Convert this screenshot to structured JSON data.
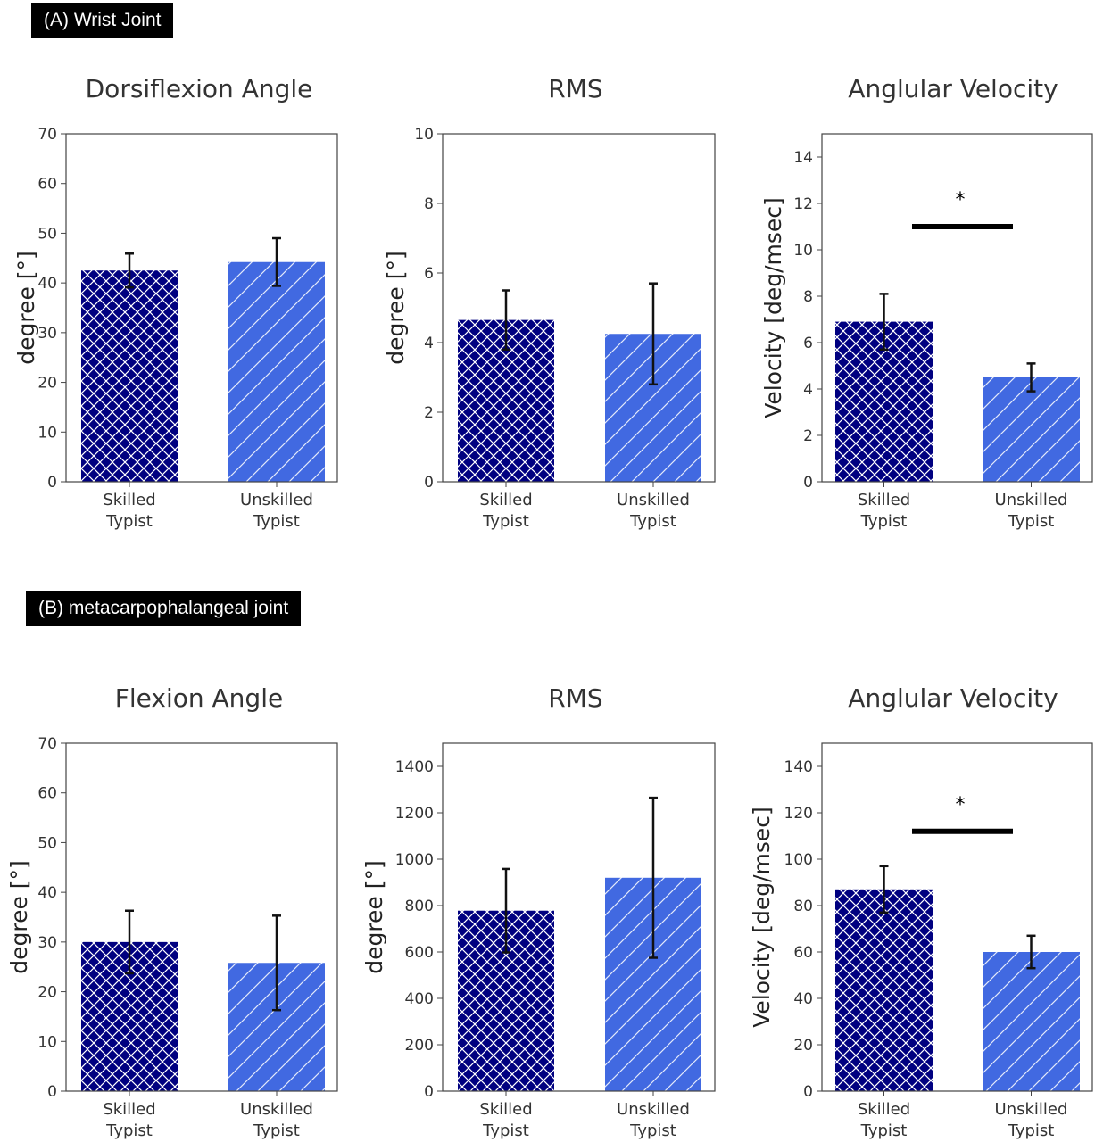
{
  "sections": [
    {
      "label": "(A) Wrist Joint"
    },
    {
      "label": "(B) metacarpophalangeal joint"
    }
  ],
  "colors": {
    "skilled": "#000080",
    "unskilled": "#4169E1",
    "hatch": "#ffffff",
    "error": "#111111",
    "frame": "#444444"
  },
  "legend_patterns": {
    "skilled": "crosshatch",
    "unskilled": "diagonal"
  },
  "chart_data": [
    {
      "type": "bar",
      "title": "Dorsiflexion Angle",
      "ylabel": "degree [°]",
      "ylim": [
        0,
        70
      ],
      "yticks": [
        0,
        10,
        20,
        30,
        40,
        50,
        60,
        70
      ],
      "categories": [
        [
          "Skilled",
          "Typist"
        ],
        [
          "Unskilled",
          "Typist"
        ]
      ],
      "values": [
        42.5,
        44.2
      ],
      "errors": [
        3.4,
        4.8
      ],
      "significance": null
    },
    {
      "type": "bar",
      "title": "RMS",
      "ylabel": "degree [°]",
      "ylim": [
        0,
        10
      ],
      "yticks": [
        0,
        2,
        4,
        6,
        8,
        10
      ],
      "categories": [
        [
          "Skilled",
          "Typist"
        ],
        [
          "Unskilled",
          "Typist"
        ]
      ],
      "values": [
        4.65,
        4.25
      ],
      "errors": [
        0.85,
        1.45
      ],
      "significance": null
    },
    {
      "type": "bar",
      "title": "Anglular Velocity",
      "ylabel": "Velocity [deg/msec]",
      "ylim": [
        0,
        15
      ],
      "yticks": [
        0,
        2,
        4,
        6,
        8,
        10,
        12,
        14
      ],
      "categories": [
        [
          "Skilled",
          "Typist"
        ],
        [
          "Unskilled",
          "Typist"
        ]
      ],
      "values": [
        6.9,
        4.5
      ],
      "errors": [
        1.2,
        0.6
      ],
      "significance": {
        "symbol": "*",
        "line_y": 11
      }
    },
    {
      "type": "bar",
      "title": "Flexion Angle",
      "ylabel": "degree [°]",
      "ylim": [
        0,
        70
      ],
      "yticks": [
        0,
        10,
        20,
        30,
        40,
        50,
        60,
        70
      ],
      "categories": [
        [
          "Skilled",
          "Typist"
        ],
        [
          "Unskilled",
          "Typist"
        ]
      ],
      "values": [
        30.0,
        25.8
      ],
      "errors": [
        6.3,
        9.5
      ],
      "significance": null
    },
    {
      "type": "bar",
      "title": "RMS",
      "ylabel": "degree [°]",
      "ylim": [
        0,
        1500
      ],
      "yticks": [
        0,
        200,
        400,
        600,
        800,
        1000,
        1200,
        1400
      ],
      "categories": [
        [
          "Skilled",
          "Typist"
        ],
        [
          "Unskilled",
          "Typist"
        ]
      ],
      "values": [
        778,
        920
      ],
      "errors": [
        180,
        345
      ],
      "significance": null
    },
    {
      "type": "bar",
      "title": "Anglular Velocity",
      "ylabel": "Velocity [deg/msec]",
      "ylim": [
        0,
        150
      ],
      "yticks": [
        0,
        20,
        40,
        60,
        80,
        100,
        120,
        140
      ],
      "categories": [
        [
          "Skilled",
          "Typist"
        ],
        [
          "Unskilled",
          "Typist"
        ]
      ],
      "values": [
        87,
        60
      ],
      "errors": [
        10,
        7
      ],
      "significance": {
        "symbol": "*",
        "line_y": 112
      }
    }
  ]
}
